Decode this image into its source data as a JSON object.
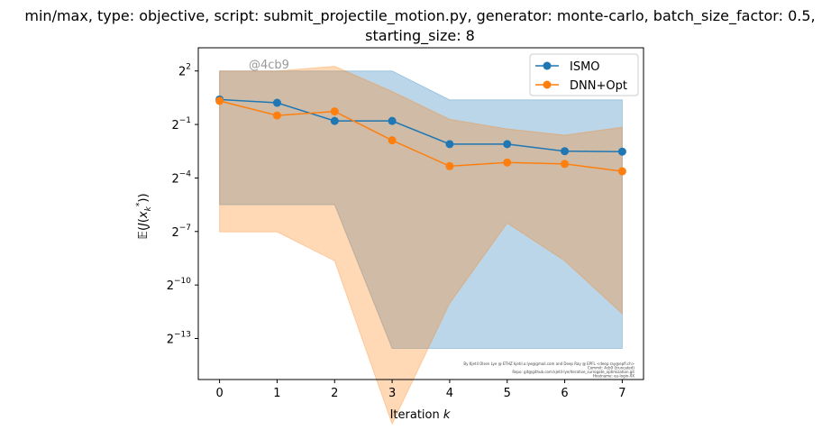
{
  "chart_data": {
    "type": "line",
    "title_line1": "min/max, type: objective, script: submit_projectile_motion.py, generator: monte-carlo, batch_size_factor: 0.5,",
    "title_line2": "starting_size: 8",
    "xlabel": "Iteration k",
    "ylabel": "𝔼(J(x_k*))",
    "watermark": "@4cb9",
    "footnote": [
      "By Kjetil Olsen Lye @ ETHZ kjetil.o.lye@gmail.com and Deep Ray @ EPFL <deep.ray@epfl.ch>",
      "Commit: 4cb9 (truncated)",
      "Repo: git@github.com:kjetil-lye/iterative_surrogate_optimization.git",
      "Hostname: eu-login-XX"
    ],
    "x": [
      0,
      1,
      2,
      3,
      4,
      5,
      6,
      7
    ],
    "xticks": [
      "0",
      "1",
      "2",
      "3",
      "4",
      "5",
      "6",
      "7"
    ],
    "yscale": "log2",
    "yticks": [
      {
        "base": "2",
        "exp": "2",
        "exp_log": 2
      },
      {
        "base": "2",
        "exp": "−1",
        "exp_log": -1
      },
      {
        "base": "2",
        "exp": "−4",
        "exp_log": -4
      },
      {
        "base": "2",
        "exp": "−7",
        "exp_log": -7
      },
      {
        "base": "2",
        "exp": "−10",
        "exp_log": -10
      },
      {
        "base": "2",
        "exp": "−13",
        "exp_log": -13
      }
    ],
    "ylim_log2": [
      -15.3,
      3.3
    ],
    "xlim": [
      -0.37,
      7.37
    ],
    "legend_position": "upper right",
    "series": [
      {
        "name": "ISMO",
        "color": "#1f77b4",
        "values": [
          1.32,
          1.16,
          0.574,
          0.574,
          0.233,
          0.233,
          0.177,
          0.174
        ],
        "min": [
          0.0221,
          0.0221,
          0.0221,
          8.3e-05,
          8.3e-05,
          8.3e-05,
          8.3e-05,
          8.3e-05
        ],
        "max": [
          4.0,
          4.0,
          4.0,
          4.0,
          1.3,
          1.3,
          1.3,
          1.3
        ]
      },
      {
        "name": "DNN+Opt",
        "color": "#ff7f0e",
        "values": [
          1.25,
          0.71,
          0.83,
          0.27,
          0.099,
          0.114,
          0.108,
          0.081
        ],
        "min": [
          0.0077,
          0.0077,
          0.0025,
          4.4e-06,
          0.00048,
          0.0108,
          0.0025,
          0.00032
        ],
        "max": [
          4.0,
          4.0,
          4.8,
          1.8,
          0.61,
          0.42,
          0.33,
          0.45
        ]
      }
    ]
  }
}
